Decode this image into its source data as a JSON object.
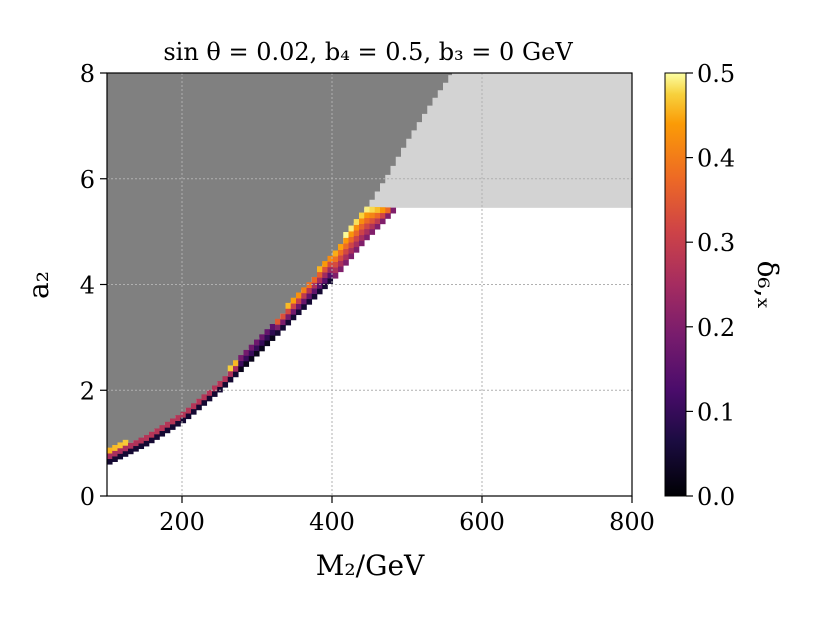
{
  "chart_data": {
    "type": "heatmap",
    "title": "sin θ = 0.02,  b₄ = 0.5,  b₃ = 0  GeV",
    "xlabel": "M₂/GeV",
    "ylabel": "a₂",
    "xlim": [
      100,
      800
    ],
    "ylim": [
      0,
      8
    ],
    "x_ticks": [
      "200",
      "400",
      "600",
      "800"
    ],
    "y_ticks": [
      "0",
      "2",
      "4",
      "6",
      "8"
    ],
    "grid": true,
    "colorbar": {
      "label": "δ₆,ₓ",
      "colormap": "inferno",
      "range": [
        0.0,
        0.5
      ],
      "ticks": [
        "0.0",
        "0.1",
        "0.2",
        "0.3",
        "0.4",
        "0.5"
      ]
    },
    "regions": [
      {
        "name": "excluded-dark",
        "color": "#808080",
        "upper_boundary_x": [
          100,
          150,
          200,
          250,
          300,
          350,
          400,
          440,
          470,
          500,
          530,
          557
        ],
        "upper_boundary_y": [
          0.82,
          1.15,
          1.6,
          2.2,
          2.95,
          3.75,
          4.6,
          5.38,
          6.05,
          6.78,
          7.45,
          8.0
        ]
      },
      {
        "name": "excluded-light",
        "color": "#d3d3d3",
        "y_threshold": 5.45
      }
    ],
    "band": {
      "description_points": [
        {
          "x": 100,
          "low": 0.6,
          "high": 0.82
        },
        {
          "x": 150,
          "low": 0.95,
          "high": 1.15
        },
        {
          "x": 200,
          "low": 1.4,
          "high": 1.6
        },
        {
          "x": 250,
          "low": 2.0,
          "high": 2.2
        },
        {
          "x": 300,
          "low": 2.7,
          "high": 2.95
        },
        {
          "x": 350,
          "low": 3.4,
          "high": 3.75
        },
        {
          "x": 400,
          "low": 4.1,
          "high": 4.6
        },
        {
          "x": 440,
          "low": 4.8,
          "high": 5.38
        },
        {
          "x": 485,
          "low": 5.45,
          "high": 5.45
        }
      ]
    }
  }
}
